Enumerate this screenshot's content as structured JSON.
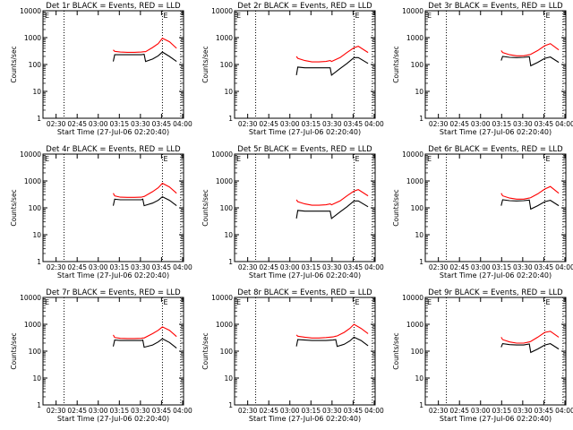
{
  "chart_data": {
    "type": "line",
    "layout": "3x3 grid",
    "xlabel": "Start Time (27-Jul-06 02:20:40)",
    "ylabel": "Counts/sec",
    "x_unit": "minutes since 02:20:40",
    "xlim": [
      0,
      100
    ],
    "ylim": [
      1,
      10000
    ],
    "yscale": "log",
    "x_ticks": [
      {
        "label": "02:30",
        "x": 9.33
      },
      {
        "label": "02:45",
        "x": 24.33
      },
      {
        "label": "03:00",
        "x": 39.33
      },
      {
        "label": "03:15",
        "x": 54.33
      },
      {
        "label": "03:30",
        "x": 69.33
      },
      {
        "label": "03:45",
        "x": 84.33
      },
      {
        "label": "04:00",
        "x": 99.33
      }
    ],
    "y_ticks": [
      {
        "label": "1",
        "y": 1
      },
      {
        "label": "10",
        "y": 10
      },
      {
        "label": "100",
        "y": 100
      },
      {
        "label": "1000",
        "y": 1000
      },
      {
        "label": "10000",
        "y": 10000
      }
    ],
    "vlines": [
      15,
      85,
      98
    ],
    "corner_marks": [
      "E",
      "E"
    ],
    "panels": [
      {
        "title": "Det 1r BLACK = Events, RED = LLD",
        "series": [
          {
            "name": "Events",
            "color": "#000000",
            "x": [
              50,
              51,
              55,
              60,
              65,
              70,
              72,
              73,
              78,
              82,
              85,
              90,
              95
            ],
            "y": [
              130,
              230,
              230,
              230,
              230,
              230,
              240,
              130,
              160,
              210,
              290,
              200,
              130
            ]
          },
          {
            "name": "LLD",
            "color": "#ff0000",
            "x": [
              50,
              51,
              55,
              60,
              65,
              70,
              72,
              73,
              78,
              82,
              85,
              90,
              95
            ],
            "y": [
              350,
              310,
              290,
              285,
              285,
              290,
              300,
              300,
              430,
              600,
              950,
              700,
              400
            ]
          }
        ]
      },
      {
        "title": "Det 2r BLACK = Events, RED = LLD",
        "series": [
          {
            "name": "Events",
            "color": "#000000",
            "x": [
              44,
              45,
              50,
              55,
              60,
              65,
              68,
              69,
              75,
              80,
              85,
              88,
              95
            ],
            "y": [
              40,
              80,
              75,
              75,
              75,
              75,
              75,
              40,
              70,
              110,
              180,
              180,
              110
            ]
          },
          {
            "name": "LLD",
            "color": "#ff0000",
            "x": [
              44,
              45,
              50,
              55,
              60,
              65,
              68,
              69,
              75,
              80,
              85,
              88,
              95
            ],
            "y": [
              200,
              170,
              140,
              125,
              125,
              130,
              140,
              130,
              180,
              280,
              420,
              480,
              280
            ]
          }
        ]
      },
      {
        "title": "Det 3r BLACK = Events, RED = LLD",
        "series": [
          {
            "name": "Events",
            "color": "#000000",
            "x": [
              54,
              55,
              60,
              65,
              70,
              74,
              75,
              80,
              85,
              89,
              95
            ],
            "y": [
              140,
              200,
              185,
              180,
              185,
              195,
              90,
              120,
              170,
              190,
              120
            ]
          },
          {
            "name": "LLD",
            "color": "#ff0000",
            "x": [
              54,
              55,
              60,
              65,
              70,
              74,
              75,
              80,
              85,
              89,
              95
            ],
            "y": [
              330,
              280,
              230,
              210,
              210,
              230,
              240,
              330,
              500,
              600,
              350
            ]
          }
        ]
      },
      {
        "title": "Det 4r BLACK = Events, RED = LLD",
        "series": [
          {
            "name": "Events",
            "color": "#000000",
            "x": [
              50,
              51,
              55,
              60,
              65,
              70,
              71,
              72,
              78,
              82,
              85,
              90,
              95
            ],
            "y": [
              120,
              210,
              200,
              200,
              200,
              200,
              210,
              120,
              150,
              190,
              260,
              190,
              120
            ]
          },
          {
            "name": "LLD",
            "color": "#ff0000",
            "x": [
              50,
              51,
              55,
              60,
              65,
              70,
              71,
              72,
              78,
              82,
              85,
              90,
              95
            ],
            "y": [
              350,
              280,
              250,
              245,
              245,
              250,
              260,
              265,
              400,
              560,
              820,
              600,
              350
            ]
          }
        ]
      },
      {
        "title": "Det 5r BLACK = Events, RED = LLD",
        "series": [
          {
            "name": "Events",
            "color": "#000000",
            "x": [
              44,
              45,
              50,
              55,
              60,
              65,
              68,
              69,
              75,
              80,
              85,
              88,
              95
            ],
            "y": [
              40,
              80,
              75,
              75,
              75,
              75,
              75,
              40,
              70,
              110,
              180,
              180,
              110
            ]
          },
          {
            "name": "LLD",
            "color": "#ff0000",
            "x": [
              44,
              45,
              50,
              55,
              60,
              65,
              68,
              69,
              75,
              80,
              85,
              88,
              95
            ],
            "y": [
              200,
              170,
              140,
              125,
              125,
              130,
              140,
              130,
              180,
              280,
              420,
              480,
              280
            ]
          }
        ]
      },
      {
        "title": "Det 6r BLACK = Events, RED = LLD",
        "series": [
          {
            "name": "Events",
            "color": "#000000",
            "x": [
              54,
              55,
              60,
              65,
              70,
              74,
              75,
              80,
              85,
              89,
              95
            ],
            "y": [
              120,
              200,
              185,
              180,
              185,
              195,
              90,
              120,
              170,
              190,
              120
            ]
          },
          {
            "name": "LLD",
            "color": "#ff0000",
            "x": [
              54,
              55,
              60,
              65,
              70,
              74,
              75,
              80,
              85,
              89,
              95
            ],
            "y": [
              350,
              280,
              230,
              210,
              210,
              230,
              240,
              330,
              500,
              620,
              350
            ]
          }
        ]
      },
      {
        "title": "Det 7r BLACK = Events, RED = LLD",
        "series": [
          {
            "name": "Events",
            "color": "#000000",
            "x": [
              50,
              51,
              55,
              60,
              65,
              70,
              71,
              72,
              78,
              82,
              85,
              90,
              95
            ],
            "y": [
              150,
              260,
              250,
              250,
              250,
              250,
              260,
              140,
              170,
              220,
              290,
              210,
              130
            ]
          },
          {
            "name": "LLD",
            "color": "#ff0000",
            "x": [
              50,
              51,
              55,
              60,
              65,
              70,
              71,
              72,
              78,
              82,
              85,
              90,
              95
            ],
            "y": [
              400,
              320,
              300,
              295,
              295,
              300,
              310,
              310,
              450,
              600,
              800,
              600,
              350
            ]
          }
        ]
      },
      {
        "title": "Det 8r BLACK = Events, RED = LLD",
        "series": [
          {
            "name": "Events",
            "color": "#000000",
            "x": [
              44,
              45,
              50,
              55,
              60,
              65,
              70,
              72,
              73,
              78,
              82,
              85,
              90,
              95
            ],
            "y": [
              150,
              270,
              260,
              250,
              250,
              250,
              260,
              270,
              150,
              180,
              240,
              330,
              250,
              160
            ]
          },
          {
            "name": "LLD",
            "color": "#ff0000",
            "x": [
              44,
              45,
              50,
              55,
              60,
              65,
              70,
              72,
              73,
              78,
              82,
              85,
              90,
              95
            ],
            "y": [
              400,
              360,
              330,
              310,
              310,
              320,
              340,
              360,
              370,
              500,
              700,
              1000,
              700,
              450
            ]
          }
        ]
      },
      {
        "title": "Det 9r BLACK = Events, RED = LLD",
        "series": [
          {
            "name": "Events",
            "color": "#000000",
            "x": [
              54,
              55,
              60,
              65,
              70,
              74,
              75,
              80,
              85,
              89,
              95
            ],
            "y": [
              140,
              190,
              175,
              170,
              170,
              185,
              90,
              120,
              170,
              190,
              120
            ]
          },
          {
            "name": "LLD",
            "color": "#ff0000",
            "x": [
              54,
              55,
              60,
              65,
              70,
              74,
              75,
              80,
              85,
              89,
              95
            ],
            "y": [
              330,
              270,
              220,
              200,
              200,
              220,
              230,
              330,
              500,
              550,
              330
            ]
          }
        ]
      }
    ]
  }
}
